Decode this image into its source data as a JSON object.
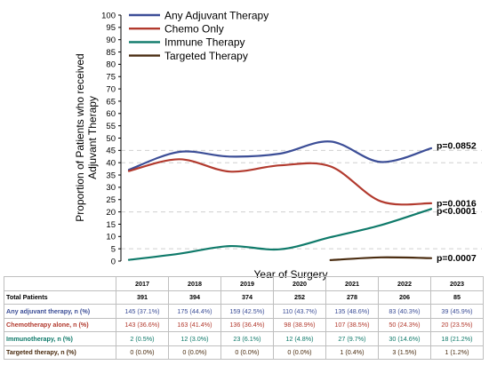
{
  "chart_data": {
    "type": "line",
    "title": "",
    "xlabel": "Year of Surgery",
    "ylabel": "Proportion of Patients who received Adjuvant Therapy",
    "ylabel_lines": [
      "Proportion of Patients who received",
      "Adjuvant Therapy"
    ],
    "ylim": [
      0,
      100
    ],
    "yticks": [
      0,
      5,
      10,
      15,
      20,
      25,
      30,
      35,
      40,
      45,
      50,
      55,
      60,
      65,
      70,
      75,
      80,
      85,
      90,
      95,
      100
    ],
    "x": [
      2017,
      2018,
      2019,
      2020,
      2021,
      2022,
      2023
    ],
    "grid": "dashed horizontal at 5, 20, 40, 45",
    "legend_position": "top-left",
    "series": [
      {
        "name": "Any Adjuvant Therapy",
        "color": "#3c4e97",
        "values": [
          37.1,
          44.4,
          42.5,
          43.7,
          48.6,
          40.3,
          45.9
        ],
        "pvalue": "p=0.0852"
      },
      {
        "name": "Chemo Only",
        "color": "#b23a2e",
        "values": [
          36.6,
          41.4,
          36.4,
          38.9,
          38.5,
          24.3,
          23.5
        ],
        "pvalue": "p=0.0016"
      },
      {
        "name": "Immune Therapy",
        "color": "#0f7a6a",
        "values": [
          0.5,
          3.0,
          6.1,
          4.8,
          9.7,
          14.6,
          21.2
        ],
        "pvalue": "p<0.0001"
      },
      {
        "name": "Targeted Therapy",
        "color": "#4a2c10",
        "values": [
          null,
          null,
          null,
          null,
          0.4,
          1.5,
          1.2
        ],
        "pvalue": "p=0.0007"
      }
    ]
  },
  "table": {
    "years": [
      "2017",
      "2018",
      "2019",
      "2020",
      "2021",
      "2022",
      "2023"
    ],
    "rows": [
      {
        "label": "Total Patients",
        "color": "#000000",
        "cells": [
          "391",
          "394",
          "374",
          "252",
          "278",
          "206",
          "85"
        ]
      },
      {
        "label": "Any adjuvant therapy, n (%)",
        "color": "#3c4e97",
        "cells": [
          "145 (37.1%)",
          "175 (44.4%)",
          "159 (42.5%)",
          "110 (43.7%)",
          "135 (48.6%)",
          "83 (40.3%)",
          "39 (45.9%)"
        ]
      },
      {
        "label": "Chemotherapy alone, n (%)",
        "color": "#b23a2e",
        "cells": [
          "143 (36.6%)",
          "163 (41.4%)",
          "136 (36.4%)",
          "98 (38.9%)",
          "107 (38.5%)",
          "50 (24.3%)",
          "20 (23.5%)"
        ]
      },
      {
        "label": "Immunotherapy, n (%)",
        "color": "#0f7a6a",
        "cells": [
          "2 (0.5%)",
          "12 (3.0%)",
          "23 (6.1%)",
          "12 (4.8%)",
          "27 (9.7%)",
          "30 (14.6%)",
          "18 (21.2%)"
        ]
      },
      {
        "label": "Targeted therapy, n (%)",
        "color": "#4a2c10",
        "cells": [
          "0 (0.0%)",
          "0 (0.0%)",
          "0 (0.0%)",
          "0 (0.0%)",
          "1 (0.4%)",
          "3 (1.5%)",
          "1 (1.2%)"
        ]
      }
    ]
  }
}
